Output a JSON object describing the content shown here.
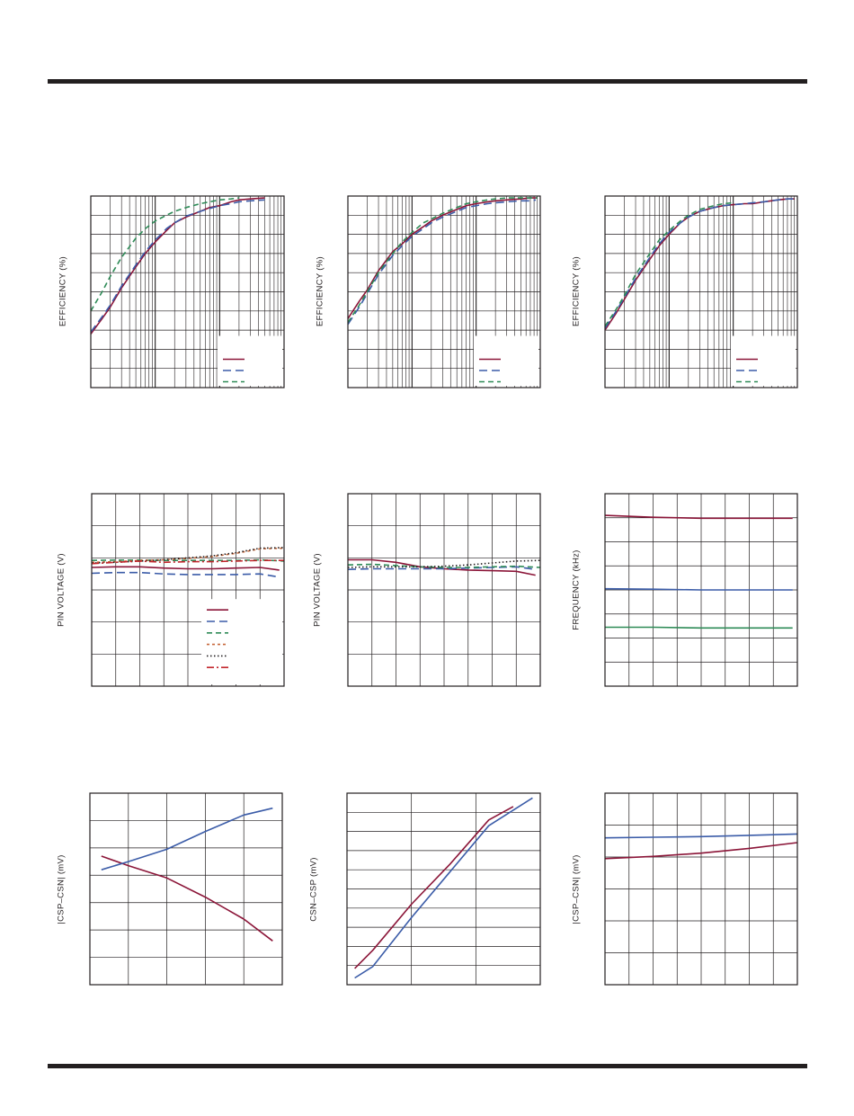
{
  "colors": {
    "frame": "#231f20",
    "grid": "#231f20",
    "red": "#8b1538",
    "blue": "#3b5ca8",
    "green": "#2e8b57",
    "orange": "#c8693c",
    "black": "#231f20",
    "red2": "#c2272d"
  },
  "chart_data": [
    {
      "id": "eff1",
      "type": "line",
      "xscale": "log",
      "xlim": [
        1,
        1000
      ],
      "ylim": [
        0,
        100
      ],
      "ylabel": "EFFICIENCY (%)",
      "legend": {
        "placement": "bottom-right",
        "entries": [
          "",
          "",
          ""
        ]
      },
      "series": [
        {
          "color": "red",
          "dash": "",
          "x": [
            1,
            1.5,
            2,
            3,
            5,
            7,
            10,
            15,
            20,
            30,
            50,
            70,
            100,
            150,
            200,
            300,
            500
          ],
          "y": [
            28,
            36,
            42,
            52,
            63,
            70,
            76,
            82,
            86,
            89,
            92,
            94,
            95,
            97,
            98,
            98.5,
            99
          ]
        },
        {
          "color": "blue",
          "dash": "9 5",
          "x": [
            1,
            1.5,
            2,
            3,
            5,
            7,
            10,
            15,
            20,
            30,
            50,
            70,
            100,
            150,
            200,
            300,
            500
          ],
          "y": [
            29,
            37,
            43,
            53,
            64,
            71,
            77,
            83,
            86,
            89.5,
            92,
            93.5,
            95,
            96,
            97,
            97.5,
            98
          ]
        },
        {
          "color": "green",
          "dash": "6 4",
          "x": [
            1,
            1.5,
            2,
            3,
            5,
            7,
            10,
            15,
            20,
            30,
            50,
            70,
            100,
            150,
            200
          ],
          "y": [
            40,
            50,
            58,
            68,
            78,
            83,
            87,
            90,
            92,
            94,
            96,
            97,
            98,
            98.5,
            99
          ]
        }
      ]
    },
    {
      "id": "eff2",
      "type": "line",
      "xscale": "log",
      "xlim": [
        1,
        1000
      ],
      "ylim": [
        0,
        100
      ],
      "ylabel": "EFFICIENCY (%)",
      "legend": {
        "placement": "bottom-right",
        "entries": [
          "",
          "",
          ""
        ]
      },
      "series": [
        {
          "color": "red",
          "dash": "",
          "x": [
            1,
            1.5,
            2,
            3,
            5,
            7,
            10,
            15,
            20,
            30,
            50,
            70,
            100,
            150,
            200,
            300,
            500,
            700,
            900
          ],
          "y": [
            36,
            45,
            51,
            61,
            71,
            75,
            80,
            84,
            87,
            90,
            93,
            95,
            96,
            97,
            97.5,
            98,
            98.5,
            99,
            99
          ]
        },
        {
          "color": "blue",
          "dash": "9 5",
          "x": [
            1,
            1.5,
            2,
            3,
            5,
            7,
            10,
            15,
            20,
            30,
            50,
            70,
            100,
            150,
            200,
            300,
            500,
            700,
            850
          ],
          "y": [
            33,
            42,
            49,
            59,
            69,
            74,
            79,
            83,
            86,
            89,
            92,
            94,
            95,
            96,
            96.5,
            97,
            97.5,
            97.5,
            98
          ]
        },
        {
          "color": "green",
          "dash": "6 4",
          "x": [
            1,
            1.5,
            2,
            3,
            5,
            7,
            10,
            15,
            20,
            30,
            50,
            70,
            100,
            150,
            200,
            300,
            500,
            700,
            900
          ],
          "y": [
            34,
            43,
            50,
            60,
            70,
            76,
            81,
            86,
            88,
            91,
            94,
            96,
            97,
            98,
            98.5,
            99,
            99,
            99,
            99
          ]
        }
      ]
    },
    {
      "id": "eff3",
      "type": "line",
      "xscale": "log",
      "xlim": [
        1,
        1000
      ],
      "ylim": [
        0,
        100
      ],
      "ylabel": "EFFICIENCY (%)",
      "legend": {
        "placement": "bottom-right",
        "entries": [
          "",
          "",
          ""
        ]
      },
      "series": [
        {
          "color": "red",
          "dash": "",
          "x": [
            1,
            1.5,
            2,
            3,
            5,
            7,
            10,
            15,
            20,
            30,
            50,
            70,
            100,
            150,
            200,
            300,
            500,
            700,
            900
          ],
          "y": [
            30,
            39,
            46,
            56,
            67,
            74,
            80,
            86,
            89,
            92,
            94,
            95,
            95.5,
            96,
            96,
            97,
            98,
            98.5,
            98.5
          ]
        },
        {
          "color": "blue",
          "dash": "9 5",
          "x": [
            1,
            1.5,
            2,
            3,
            5,
            7,
            10,
            15,
            20,
            30,
            50,
            70,
            100,
            150,
            200,
            300,
            500,
            700,
            900
          ],
          "y": [
            31,
            40,
            47,
            57,
            68,
            75,
            81,
            86,
            89,
            92,
            94,
            95,
            95.5,
            96,
            96.5,
            97,
            98,
            98.5,
            98.5
          ]
        },
        {
          "color": "green",
          "dash": "6 4",
          "x": [
            1,
            1.5,
            2,
            3,
            5,
            7,
            10,
            15,
            20,
            30,
            50,
            70,
            100
          ],
          "y": [
            32,
            41,
            48,
            59,
            70,
            77,
            82,
            87,
            90,
            93,
            95,
            96,
            96.5
          ]
        }
      ]
    },
    {
      "id": "pin1",
      "type": "line",
      "xscale": "linear",
      "xlim": [
        0,
        8
      ],
      "ylim": [
        0,
        6
      ],
      "ylabel": "PIN VOLTAGE (V)",
      "legend": {
        "placement": "bottom-right",
        "entries": [
          "",
          "",
          "",
          "",
          "",
          ""
        ]
      },
      "series": [
        {
          "color": "red",
          "dash": "",
          "x": [
            0,
            1,
            2,
            3,
            4,
            5,
            6,
            7,
            7.8
          ],
          "y": [
            3.7,
            3.72,
            3.72,
            3.68,
            3.66,
            3.66,
            3.68,
            3.7,
            3.62
          ]
        },
        {
          "color": "blue",
          "dash": "9 5",
          "x": [
            0,
            1,
            2,
            3,
            4,
            5,
            6,
            7,
            7.8
          ],
          "y": [
            3.52,
            3.54,
            3.54,
            3.5,
            3.48,
            3.48,
            3.48,
            3.5,
            3.4
          ]
        },
        {
          "color": "green",
          "dash": "6 4",
          "x": [
            0,
            1,
            2,
            3,
            4,
            5,
            6,
            7,
            8
          ],
          "y": [
            3.92,
            3.93,
            3.93,
            3.92,
            3.92,
            3.92,
            3.92,
            3.94,
            3.9
          ]
        },
        {
          "color": "orange",
          "dash": "3 3",
          "x": [
            0,
            1,
            2,
            3,
            4,
            5,
            6,
            7,
            8
          ],
          "y": [
            3.86,
            3.88,
            3.92,
            3.94,
            3.98,
            4.04,
            4.14,
            4.28,
            4.3
          ]
        },
        {
          "color": "black",
          "dash": "1.5 2.5",
          "x": [
            0,
            1,
            2,
            3,
            4,
            5,
            6,
            7,
            8
          ],
          "y": [
            3.84,
            3.86,
            3.9,
            3.94,
            4.0,
            4.06,
            4.16,
            4.3,
            4.32
          ]
        },
        {
          "color": "red2",
          "dash": "8 3 2 3",
          "x": [
            0,
            1,
            2,
            3,
            4,
            5,
            6,
            7,
            8
          ],
          "y": [
            3.82,
            3.86,
            3.9,
            3.86,
            3.88,
            3.88,
            3.9,
            3.92,
            3.92
          ]
        }
      ]
    },
    {
      "id": "pin2",
      "type": "line",
      "xscale": "linear",
      "xlim": [
        0,
        8
      ],
      "ylim": [
        0,
        6
      ],
      "ylabel": "PIN VOLTAGE (V)",
      "series": [
        {
          "color": "red",
          "dash": "",
          "x": [
            0,
            1,
            2,
            3,
            4,
            5,
            6,
            7,
            7.8
          ],
          "y": [
            3.94,
            3.94,
            3.86,
            3.72,
            3.66,
            3.62,
            3.6,
            3.58,
            3.46
          ]
        },
        {
          "color": "blue",
          "dash": "9 5",
          "x": [
            0,
            1,
            2,
            3,
            4,
            5,
            6,
            7,
            7.8
          ],
          "y": [
            3.64,
            3.66,
            3.66,
            3.66,
            3.66,
            3.68,
            3.7,
            3.72,
            3.64
          ]
        },
        {
          "color": "green",
          "dash": "6 4",
          "x": [
            0,
            1,
            2,
            3,
            4,
            5,
            6,
            7,
            8
          ],
          "y": [
            3.78,
            3.8,
            3.76,
            3.72,
            3.7,
            3.7,
            3.72,
            3.74,
            3.7
          ]
        },
        {
          "color": "black",
          "dash": "1.5 2.5",
          "x": [
            0,
            1,
            2,
            3,
            4,
            5,
            6,
            7,
            8
          ],
          "y": [
            3.7,
            3.72,
            3.72,
            3.72,
            3.74,
            3.78,
            3.84,
            3.9,
            3.92
          ]
        }
      ]
    },
    {
      "id": "freq",
      "type": "line",
      "xscale": "linear",
      "xlim": [
        0,
        8
      ],
      "ylim": [
        0,
        8
      ],
      "ylabel": "FREQUENCY (kHz)",
      "series": [
        {
          "color": "red",
          "dash": "",
          "x": [
            0,
            2,
            4,
            6,
            7.8
          ],
          "y": [
            7.1,
            7.02,
            6.98,
            6.98,
            6.98
          ]
        },
        {
          "color": "blue",
          "dash": "",
          "x": [
            0,
            2,
            4,
            6,
            7.8
          ],
          "y": [
            4.05,
            4.03,
            4.0,
            4.0,
            4.0
          ]
        },
        {
          "color": "green",
          "dash": "",
          "x": [
            0,
            2,
            4,
            6,
            7.8
          ],
          "y": [
            2.45,
            2.45,
            2.42,
            2.42,
            2.42
          ]
        }
      ]
    },
    {
      "id": "csp1",
      "type": "line",
      "xscale": "linear",
      "xlim": [
        0,
        5
      ],
      "ylim": [
        0,
        7
      ],
      "ylabel": "|CSP–CSN| (mV)",
      "series": [
        {
          "color": "red",
          "dash": "",
          "x": [
            0.3,
            1,
            2,
            3,
            4,
            4.75
          ],
          "y": [
            4.7,
            4.35,
            3.9,
            3.2,
            2.4,
            1.6
          ]
        },
        {
          "color": "blue",
          "dash": "",
          "x": [
            0.3,
            1,
            2,
            3,
            4,
            4.75
          ],
          "y": [
            4.2,
            4.5,
            4.95,
            5.6,
            6.2,
            6.45
          ]
        }
      ]
    },
    {
      "id": "csp2",
      "type": "line",
      "xscale": "linear",
      "xlim": [
        0,
        3
      ],
      "ylim": [
        0,
        10
      ],
      "ylabel": "CSN–CSP (mV)",
      "series": [
        {
          "color": "red",
          "dash": "",
          "x": [
            0.12,
            0.4,
            1.0,
            1.6,
            2.2,
            2.58
          ],
          "y": [
            0.85,
            1.8,
            4.2,
            6.3,
            8.6,
            9.3
          ]
        },
        {
          "color": "blue",
          "dash": "",
          "x": [
            0.12,
            0.4,
            1.0,
            1.6,
            2.2,
            2.88
          ],
          "y": [
            0.35,
            0.95,
            3.5,
            5.9,
            8.3,
            9.75
          ]
        }
      ]
    },
    {
      "id": "csp3",
      "type": "line",
      "xscale": "linear",
      "xlim": [
        0,
        8
      ],
      "ylim": [
        0,
        6
      ],
      "ylabel": "|CSP–CSN| (mV)",
      "series": [
        {
          "color": "blue",
          "dash": "",
          "x": [
            0,
            2,
            4,
            6,
            8
          ],
          "y": [
            4.6,
            4.62,
            4.64,
            4.68,
            4.72
          ]
        },
        {
          "color": "red",
          "dash": "",
          "x": [
            0,
            2,
            4,
            6,
            8
          ],
          "y": [
            3.95,
            4.02,
            4.12,
            4.27,
            4.45
          ]
        }
      ]
    }
  ]
}
